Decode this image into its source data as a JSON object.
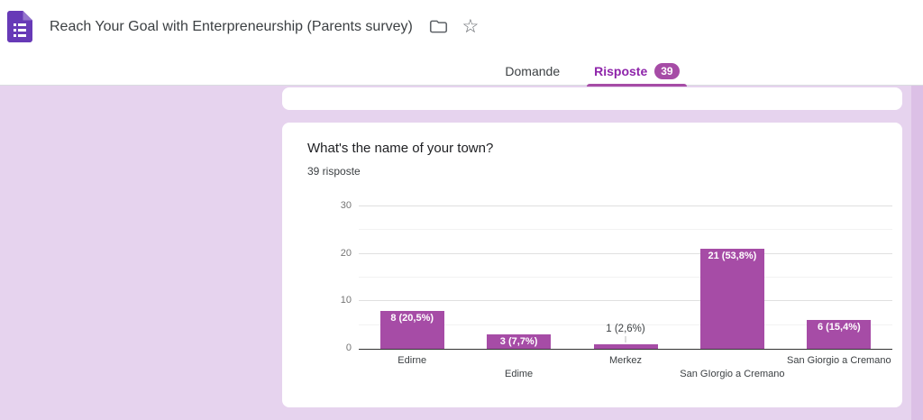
{
  "header": {
    "title": "Reach Your Goal with Enterpreneurship (Parents survey)",
    "icons": {
      "forms_logo": "google-forms-document",
      "folder": "move-to-folder-outline",
      "star": "star-outline",
      "star_glyph": "☆"
    },
    "tabs": {
      "domande": {
        "label": "Domande",
        "active": false
      },
      "risposte": {
        "label": "Risposte",
        "active": true,
        "badge": "39"
      }
    }
  },
  "question_card": {
    "title": "What's the name of your town?",
    "responses_count": "39 risposte"
  },
  "chart_data": {
    "type": "bar",
    "title": "What's the name of your town?",
    "categories": [
      "Edirne",
      "Edime",
      "Merkez",
      "San GIorgio a Cremano",
      "San Giorgio a Cremano"
    ],
    "values": [
      8,
      3,
      1,
      21,
      6
    ],
    "bar_labels": [
      "8 (20,5%)",
      "3 (7,7%)",
      "1 (2,6%)",
      "21 (53,8%)",
      "6 (15,4%)"
    ],
    "total_responses": 39,
    "xlabel": "",
    "ylabel": "",
    "ylim": [
      0,
      30
    ],
    "yticks": [
      0,
      10,
      20,
      30
    ],
    "grid": true,
    "legend": "none",
    "bar_color": "#a64ca6",
    "outside_label_indices": [
      2
    ]
  },
  "colors": {
    "accent_purple": "#8e24aa",
    "badge_purple": "#a64ca6",
    "bar_purple": "#a64ca6",
    "forms_icon_purple": "#673ab7",
    "forms_icon_fold": "#9575cd",
    "page_background": "#e6d3ee",
    "scrollbar_strip": "#dcc0e6",
    "card_background": "#ffffff",
    "header_border": "#dadce0",
    "axis_line": "#333333"
  }
}
